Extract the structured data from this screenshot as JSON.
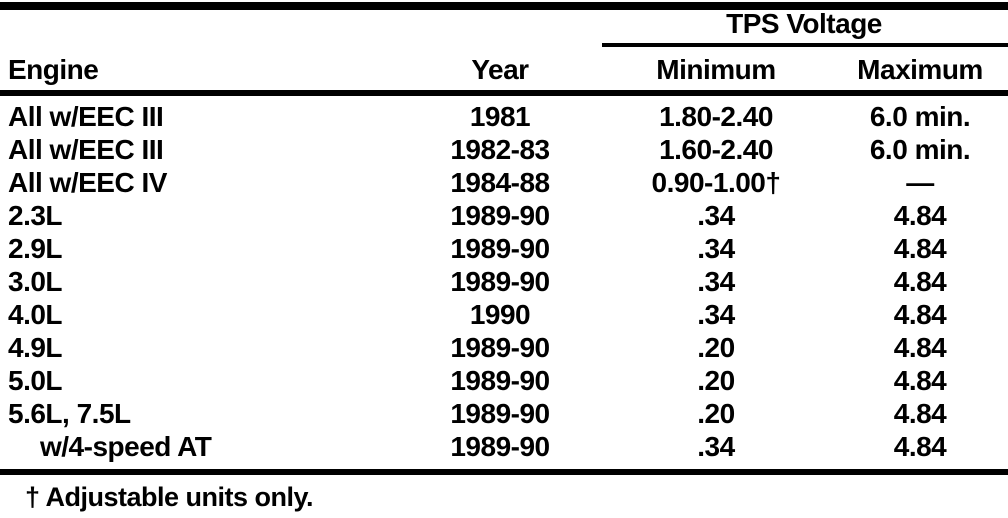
{
  "table": {
    "group_header": "TPS Voltage",
    "columns": {
      "engine": "Engine",
      "year": "Year",
      "minimum": "Minimum",
      "maximum": "Maximum"
    },
    "rows": [
      {
        "engine": "All w/EEC III",
        "year": "1981",
        "minimum": "1.80-2.40",
        "maximum": "6.0 min."
      },
      {
        "engine": "All w/EEC III",
        "year": "1982-83",
        "minimum": "1.60-2.40",
        "maximum": "6.0 min."
      },
      {
        "engine": "All w/EEC IV",
        "year": "1984-88",
        "minimum": "0.90-1.00†",
        "maximum": "—"
      },
      {
        "engine": "2.3L",
        "year": "1989-90",
        "minimum": ".34",
        "maximum": "4.84"
      },
      {
        "engine": "2.9L",
        "year": "1989-90",
        "minimum": ".34",
        "maximum": "4.84"
      },
      {
        "engine": "3.0L",
        "year": "1989-90",
        "minimum": ".34",
        "maximum": "4.84"
      },
      {
        "engine": "4.0L",
        "year": "1990",
        "minimum": ".34",
        "maximum": "4.84"
      },
      {
        "engine": "4.9L",
        "year": "1989-90",
        "minimum": ".20",
        "maximum": "4.84"
      },
      {
        "engine": "5.0L",
        "year": "1989-90",
        "minimum": ".20",
        "maximum": "4.84"
      },
      {
        "engine": "5.6L, 7.5L",
        "year": "1989-90",
        "minimum": ".20",
        "maximum": "4.84"
      },
      {
        "engine": "w/4-speed AT",
        "year": "1989-90",
        "minimum": ".34",
        "maximum": "4.84"
      }
    ],
    "footnote": "† Adjustable units only."
  },
  "colors": {
    "ink": "#000000",
    "paper": "#ffffff"
  }
}
